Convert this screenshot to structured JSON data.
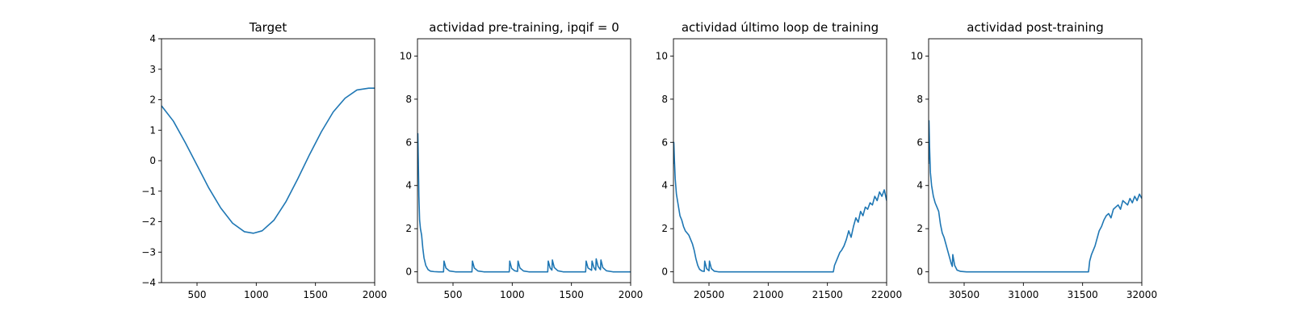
{
  "chart_data": [
    {
      "type": "line",
      "title": "Target",
      "xlabel": "",
      "ylabel": "",
      "xlim": [
        200,
        2000
      ],
      "ylim": [
        -4,
        4
      ],
      "xticks": [
        500,
        1000,
        1500,
        2000
      ],
      "yticks": [
        -4,
        -3,
        -2,
        -1,
        0,
        1,
        2,
        3,
        4
      ],
      "x": [
        200,
        300,
        400,
        500,
        600,
        700,
        800,
        900,
        975,
        1050,
        1150,
        1250,
        1350,
        1450,
        1550,
        1650,
        1750,
        1850,
        1950,
        2000
      ],
      "y": [
        1.8,
        1.3,
        0.6,
        -0.15,
        -0.9,
        -1.55,
        -2.05,
        -2.33,
        -2.38,
        -2.3,
        -1.95,
        -1.35,
        -0.6,
        0.2,
        0.95,
        1.6,
        2.05,
        2.32,
        2.38,
        2.38
      ],
      "color": "#1f77b4"
    },
    {
      "type": "line",
      "title": "actividad pre-training, ipqif = 0",
      "xlabel": "",
      "ylabel": "",
      "xlim": [
        200,
        2000
      ],
      "ylim": [
        -0.5,
        10.8
      ],
      "xticks": [
        500,
        1000,
        1500,
        2000
      ],
      "yticks": [
        0,
        2,
        4,
        6,
        8,
        10
      ],
      "x": [
        200,
        203,
        207,
        212,
        218,
        225,
        235,
        245,
        255,
        270,
        290,
        310,
        340,
        380,
        420,
        424,
        440,
        470,
        520,
        660,
        664,
        680,
        710,
        760,
        975,
        979,
        995,
        1020,
        1045,
        1049,
        1065,
        1095,
        1140,
        1300,
        1304,
        1320,
        1335,
        1339,
        1355,
        1385,
        1430,
        1620,
        1624,
        1640,
        1670,
        1674,
        1690,
        1705,
        1709,
        1725,
        1745,
        1749,
        1765,
        1795,
        1850,
        2000
      ],
      "y": [
        5.0,
        6.4,
        5.2,
        3.5,
        2.4,
        2.0,
        1.7,
        1.1,
        0.65,
        0.3,
        0.1,
        0.03,
        0.01,
        0.0,
        0.0,
        0.5,
        0.18,
        0.04,
        0.0,
        0.0,
        0.5,
        0.18,
        0.04,
        0.0,
        0.0,
        0.5,
        0.16,
        0.05,
        0.02,
        0.5,
        0.18,
        0.04,
        0.0,
        0.0,
        0.5,
        0.18,
        0.08,
        0.55,
        0.2,
        0.05,
        0.0,
        0.0,
        0.5,
        0.18,
        0.07,
        0.5,
        0.2,
        0.08,
        0.6,
        0.25,
        0.1,
        0.55,
        0.2,
        0.05,
        0.0,
        0.0
      ],
      "color": "#1f77b4"
    },
    {
      "type": "line",
      "title": "actividad último loop de training",
      "xlabel": "",
      "ylabel": "",
      "xlim": [
        20200,
        22000
      ],
      "ylim": [
        -0.5,
        10.8
      ],
      "xticks": [
        20500,
        21000,
        21500,
        22000
      ],
      "yticks": [
        0,
        2,
        4,
        6,
        8,
        10
      ],
      "x": [
        20200,
        20203,
        20208,
        20215,
        20225,
        20240,
        20255,
        20270,
        20285,
        20300,
        20315,
        20330,
        20345,
        20360,
        20375,
        20390,
        20405,
        20420,
        20440,
        20460,
        20464,
        20480,
        20500,
        20504,
        20520,
        20545,
        20580,
        21550,
        21560,
        21575,
        21590,
        21605,
        21620,
        21640,
        21660,
        21680,
        21700,
        21720,
        21740,
        21760,
        21780,
        21800,
        21820,
        21840,
        21860,
        21880,
        21900,
        21920,
        21940,
        21960,
        21980,
        22000
      ],
      "y": [
        5.0,
        6.0,
        5.2,
        4.3,
        3.6,
        3.1,
        2.6,
        2.4,
        2.1,
        1.9,
        1.8,
        1.7,
        1.5,
        1.3,
        1.0,
        0.6,
        0.3,
        0.12,
        0.04,
        0.02,
        0.5,
        0.15,
        0.05,
        0.5,
        0.15,
        0.03,
        0.0,
        0.0,
        0.3,
        0.5,
        0.7,
        0.9,
        1.0,
        1.2,
        1.5,
        1.9,
        1.6,
        2.1,
        2.5,
        2.3,
        2.8,
        2.6,
        3.0,
        2.9,
        3.2,
        3.1,
        3.5,
        3.3,
        3.7,
        3.5,
        3.8,
        3.3
      ],
      "color": "#1f77b4"
    },
    {
      "type": "line",
      "title": "actividad post-training",
      "xlabel": "",
      "ylabel": "",
      "xlim": [
        30200,
        32000
      ],
      "ylim": [
        -0.5,
        10.8
      ],
      "xticks": [
        30500,
        31000,
        31500,
        32000
      ],
      "yticks": [
        0,
        2,
        4,
        6,
        8,
        10
      ],
      "x": [
        30200,
        30203,
        30208,
        30215,
        30225,
        30240,
        30255,
        30270,
        30285,
        30300,
        30315,
        30330,
        30345,
        30360,
        30375,
        30390,
        30400,
        30404,
        30420,
        30440,
        30470,
        30520,
        31550,
        31560,
        31575,
        31590,
        31605,
        31620,
        31640,
        31660,
        31680,
        31700,
        31720,
        31740,
        31760,
        31780,
        31800,
        31820,
        31840,
        31860,
        31880,
        31900,
        31920,
        31940,
        31960,
        31980,
        32000
      ],
      "y": [
        5.0,
        7.0,
        5.8,
        4.6,
        4.0,
        3.5,
        3.2,
        3.0,
        2.8,
        2.2,
        1.8,
        1.6,
        1.3,
        1.0,
        0.7,
        0.4,
        0.25,
        0.8,
        0.3,
        0.08,
        0.02,
        0.0,
        0.0,
        0.5,
        0.8,
        1.0,
        1.2,
        1.5,
        1.9,
        2.1,
        2.4,
        2.6,
        2.7,
        2.5,
        2.9,
        3.0,
        3.1,
        2.9,
        3.3,
        3.2,
        3.1,
        3.4,
        3.2,
        3.5,
        3.3,
        3.6,
        3.4
      ],
      "color": "#1f77b4"
    }
  ]
}
